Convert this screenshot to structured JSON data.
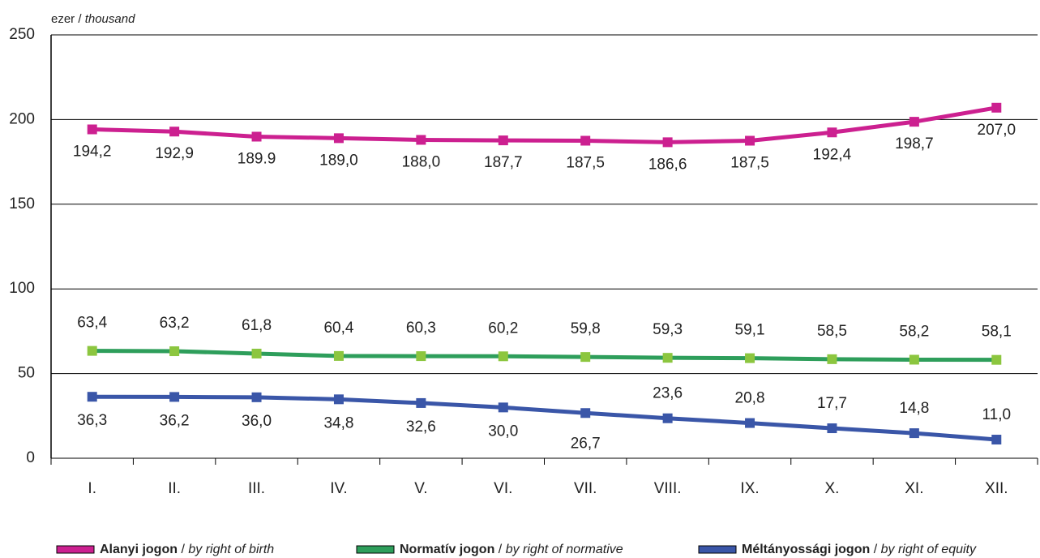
{
  "chart_data": {
    "type": "line",
    "y_axis_label": "ezer / thousand",
    "categories": [
      "I.",
      "II.",
      "III.",
      "IV.",
      "V.",
      "VI.",
      "VII.",
      "VIII.",
      "IX.",
      "X.",
      "XI.",
      "XII."
    ],
    "series": [
      {
        "name": "Alanyi jogon / by right of birth",
        "color": "#cc2090",
        "marker_color": "#cc2090",
        "values": [
          194.2,
          192.9,
          189.9,
          189.0,
          188.0,
          187.7,
          187.5,
          186.6,
          187.5,
          192.4,
          198.7,
          207.0
        ],
        "value_labels": [
          "194,2",
          "192,9",
          "189.9",
          "189,0",
          "188,0",
          "187,7",
          "187,5",
          "186,6",
          "187,5",
          "192,4",
          "198,7",
          "207,0"
        ]
      },
      {
        "name": "Normatív jogon / by right of normative",
        "color": "#2e9e5b",
        "marker_color": "#8cc63f",
        "values": [
          63.4,
          63.2,
          61.8,
          60.4,
          60.3,
          60.2,
          59.8,
          59.3,
          59.1,
          58.5,
          58.2,
          58.1
        ],
        "value_labels": [
          "63,4",
          "63,2",
          "61,8",
          "60,4",
          "60,3",
          "60,2",
          "59,8",
          "59,3",
          "59,1",
          "58,5",
          "58,2",
          "58,1"
        ]
      },
      {
        "name": "Méltányossági jogon / by right of equity",
        "color": "#3a56a8",
        "marker_color": "#3a56a8",
        "values": [
          36.3,
          36.2,
          36.0,
          34.8,
          32.6,
          30.0,
          26.7,
          23.6,
          20.8,
          17.7,
          14.8,
          11.0
        ],
        "value_labels": [
          "36,3",
          "36,2",
          "36,0",
          "34,8",
          "32,6",
          "30,0",
          "26,7",
          "23,6",
          "20,8",
          "17,7",
          "14,8",
          "11,0"
        ]
      }
    ],
    "ylim": [
      0,
      250
    ],
    "yticks": [
      0,
      50,
      100,
      150,
      200,
      250
    ],
    "grid": true
  }
}
